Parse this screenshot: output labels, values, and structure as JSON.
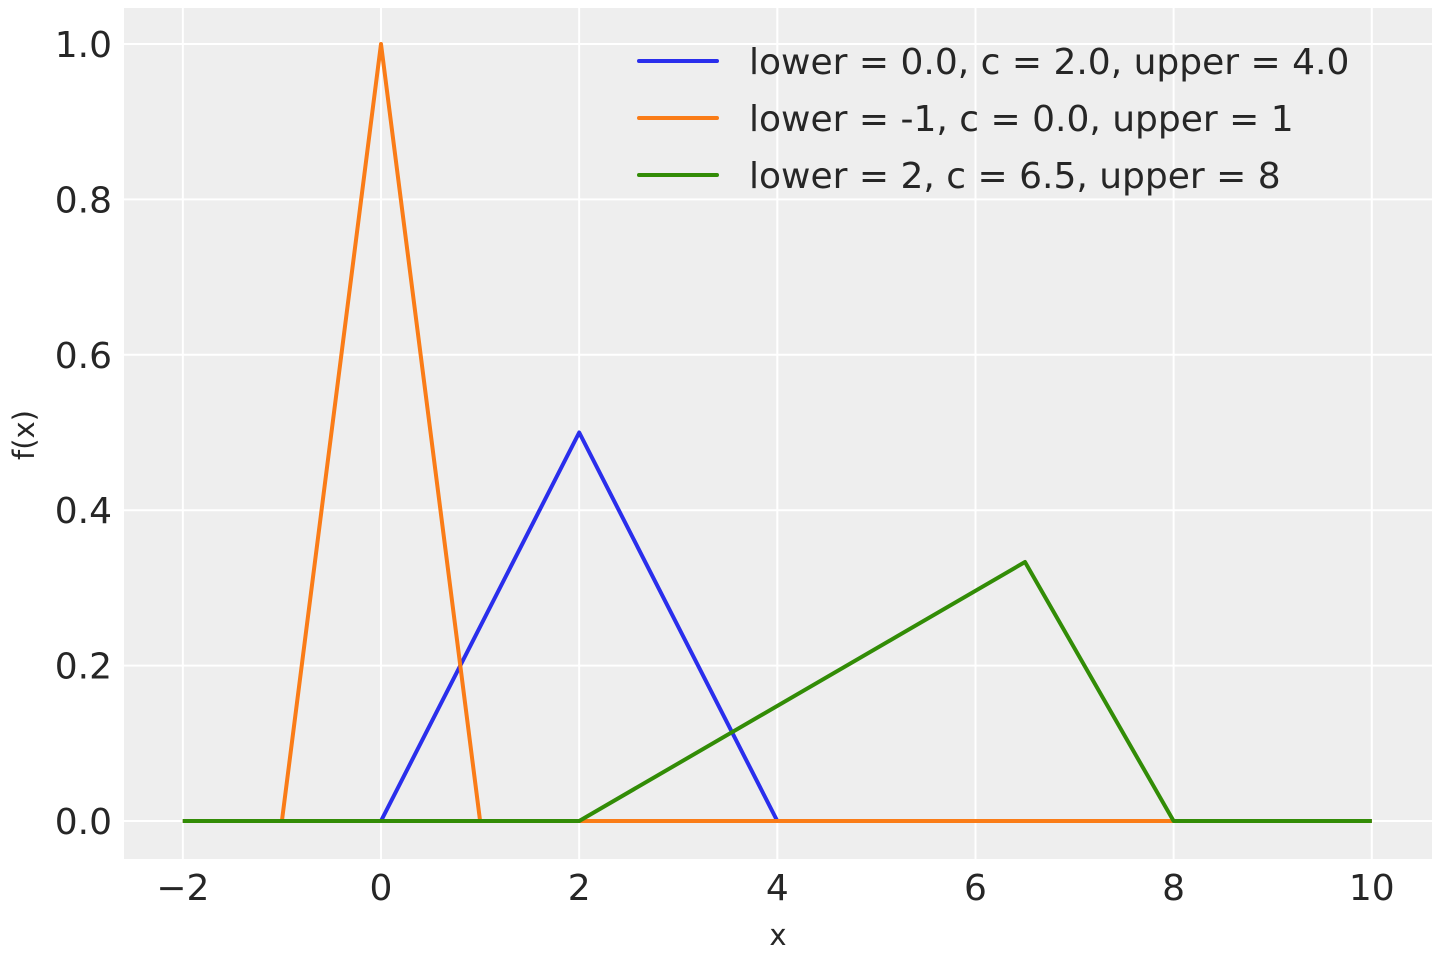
{
  "chart_data": {
    "type": "line",
    "title": "",
    "xlabel": "x",
    "ylabel": "f(x)",
    "xlim": [
      -2.6,
      10.6
    ],
    "ylim": [
      -0.05,
      1.05
    ],
    "xticks": [
      -2,
      0,
      2,
      4,
      6,
      8,
      10
    ],
    "xtick_labels": [
      "−2",
      "0",
      "2",
      "4",
      "6",
      "8",
      "10"
    ],
    "yticks": [
      0.0,
      0.2,
      0.4,
      0.6,
      0.8,
      1.0
    ],
    "ytick_labels": [
      "0.0",
      "0.2",
      "0.4",
      "0.6",
      "0.8",
      "1.0"
    ],
    "grid": true,
    "background": "#eeeeee",
    "legend_position": "top-right",
    "series": [
      {
        "name": "lower = 0.0, c = 2.0, upper = 4.0",
        "color": "#2a2eec",
        "x": [
          -2,
          0,
          2,
          4,
          10
        ],
        "y": [
          0,
          0,
          0.5,
          0,
          0
        ]
      },
      {
        "name": "lower = -1, c = 0.0, upper = 1",
        "color": "#fa7c17",
        "x": [
          -2,
          -1,
          0,
          1,
          10
        ],
        "y": [
          0,
          0,
          1.0,
          0,
          0
        ]
      },
      {
        "name": "lower = 2, c = 6.5, upper = 8",
        "color": "#328c06",
        "x": [
          -2,
          2,
          6.5,
          8,
          10
        ],
        "y": [
          0,
          0,
          0.3333,
          0,
          0
        ]
      }
    ]
  }
}
